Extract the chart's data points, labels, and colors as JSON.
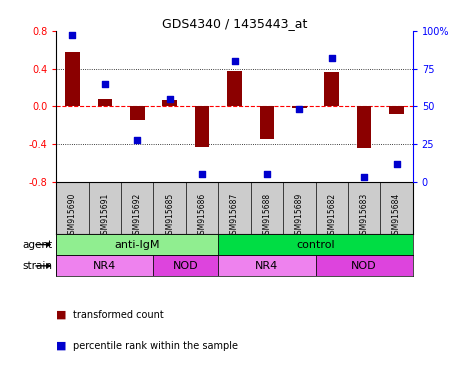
{
  "title": "GDS4340 / 1435443_at",
  "samples": [
    "GSM915690",
    "GSM915691",
    "GSM915692",
    "GSM915685",
    "GSM915686",
    "GSM915687",
    "GSM915688",
    "GSM915689",
    "GSM915682",
    "GSM915683",
    "GSM915684"
  ],
  "bar_values": [
    0.58,
    0.08,
    -0.14,
    0.07,
    -0.43,
    0.37,
    -0.35,
    -0.02,
    0.36,
    -0.44,
    -0.08
  ],
  "dot_values": [
    97,
    65,
    28,
    55,
    5,
    80,
    5,
    48,
    82,
    3,
    12
  ],
  "bar_color": "#8B0000",
  "dot_color": "#0000CD",
  "ylim": [
    -0.8,
    0.8
  ],
  "yticks_left": [
    -0.8,
    -0.4,
    0.0,
    0.4,
    0.8
  ],
  "yticks_right": [
    0,
    25,
    50,
    75,
    100
  ],
  "agent_groups": [
    {
      "label": "anti-IgM",
      "start": 0,
      "end": 5,
      "color": "#90EE90"
    },
    {
      "label": "control",
      "start": 5,
      "end": 11,
      "color": "#00DD44"
    }
  ],
  "strain_groups": [
    {
      "label": "NR4",
      "start": 0,
      "end": 3,
      "color": "#EE82EE"
    },
    {
      "label": "NOD",
      "start": 3,
      "end": 5,
      "color": "#DD44DD"
    },
    {
      "label": "NR4",
      "start": 5,
      "end": 8,
      "color": "#EE82EE"
    },
    {
      "label": "NOD",
      "start": 8,
      "end": 11,
      "color": "#DD44DD"
    }
  ],
  "legend_red_label": "transformed count",
  "legend_blue_label": "percentile rank within the sample",
  "background_color": "#FFFFFF",
  "sample_bg_color": "#CCCCCC",
  "gridline_color": "#000000",
  "zeroline_color": "#FF0000"
}
